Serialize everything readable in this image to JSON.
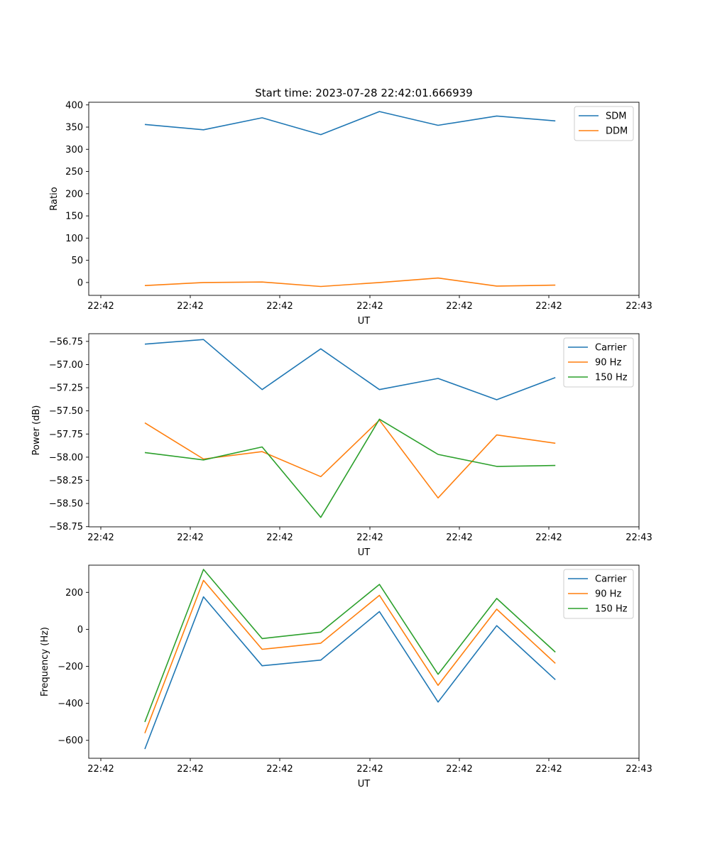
{
  "figure_title": "Start time: 2023-07-28 22:42:01.666939",
  "chart_data": [
    {
      "type": "line",
      "title": "Start time: 2023-07-28 22:42:01.666939",
      "xlabel": "UT",
      "ylabel": "Ratio",
      "x_ticks": [
        "22:42",
        "22:42",
        "22:42",
        "22:42",
        "22:42",
        "22:42",
        "22:42",
        "22:43"
      ],
      "x": [
        1,
        2,
        3,
        4,
        5,
        6,
        7,
        8
      ],
      "xlim": [
        0.238,
        9.492
      ],
      "ylim": [
        -29,
        406
      ],
      "y_ticks": [
        0,
        50,
        100,
        150,
        200,
        250,
        300,
        350,
        400
      ],
      "legend_position": "top-right",
      "series": [
        {
          "name": "SDM",
          "color": "#1f77b4",
          "values": [
            356,
            344,
            371,
            333,
            385,
            354,
            375,
            364
          ]
        },
        {
          "name": "DDM",
          "color": "#ff7f0e",
          "values": [
            -7,
            0,
            1,
            -9,
            0,
            10,
            -8,
            -6
          ]
        }
      ]
    },
    {
      "type": "line",
      "title": "",
      "xlabel": "UT",
      "ylabel": "Power (dB)",
      "x_ticks": [
        "22:42",
        "22:42",
        "22:42",
        "22:42",
        "22:42",
        "22:42",
        "22:42",
        "22:43"
      ],
      "x": [
        1,
        2,
        3,
        4,
        5,
        6,
        7,
        8
      ],
      "xlim": [
        0.238,
        9.492
      ],
      "ylim": [
        -58.752,
        -56.667
      ],
      "y_ticks": [
        "−58.75",
        "−58.50",
        "−58.25",
        "−58.00",
        "−57.75",
        "−57.50",
        "−57.25",
        "−57.00",
        "−56.75"
      ],
      "y_tick_values": [
        -58.75,
        -58.5,
        -58.25,
        -58.0,
        -57.75,
        -57.5,
        -57.25,
        -57.0,
        -56.75
      ],
      "legend_position": "top-right",
      "series": [
        {
          "name": "Carrier",
          "color": "#1f77b4",
          "values": [
            -56.78,
            -56.73,
            -57.27,
            -56.83,
            -57.27,
            -57.15,
            -57.38,
            -57.14
          ]
        },
        {
          "name": "90 Hz",
          "color": "#ff7f0e",
          "values": [
            -57.63,
            -58.02,
            -57.94,
            -58.21,
            -57.6,
            -58.44,
            -57.76,
            -57.85
          ]
        },
        {
          "name": "150 Hz",
          "color": "#2ca02c",
          "values": [
            -57.95,
            -58.03,
            -57.89,
            -58.65,
            -57.59,
            -57.97,
            -58.1,
            -58.09
          ]
        }
      ]
    },
    {
      "type": "line",
      "title": "",
      "xlabel": "UT",
      "ylabel": "Frequency (Hz)",
      "x_ticks": [
        "22:42",
        "22:42",
        "22:42",
        "22:42",
        "22:42",
        "22:42",
        "22:42",
        "22:43"
      ],
      "x": [
        1,
        2,
        3,
        4,
        5,
        6,
        7,
        8
      ],
      "xlim": [
        0.238,
        9.492
      ],
      "ylim": [
        -697,
        347
      ],
      "y_ticks": [
        "−600",
        "−400",
        "−200",
        "0",
        "200"
      ],
      "y_tick_values": [
        -600,
        -400,
        -200,
        0,
        200
      ],
      "legend_position": "top-right",
      "series": [
        {
          "name": "Carrier",
          "color": "#1f77b4",
          "values": [
            -647,
            176,
            -197,
            -166,
            96,
            -393,
            20,
            -272
          ]
        },
        {
          "name": "90 Hz",
          "color": "#ff7f0e",
          "values": [
            -561,
            265,
            -108,
            -75,
            184,
            -303,
            109,
            -184
          ]
        },
        {
          "name": "150 Hz",
          "color": "#2ca02c",
          "values": [
            -501,
            324,
            -50,
            -15,
            243,
            -243,
            167,
            -123
          ]
        }
      ]
    }
  ]
}
